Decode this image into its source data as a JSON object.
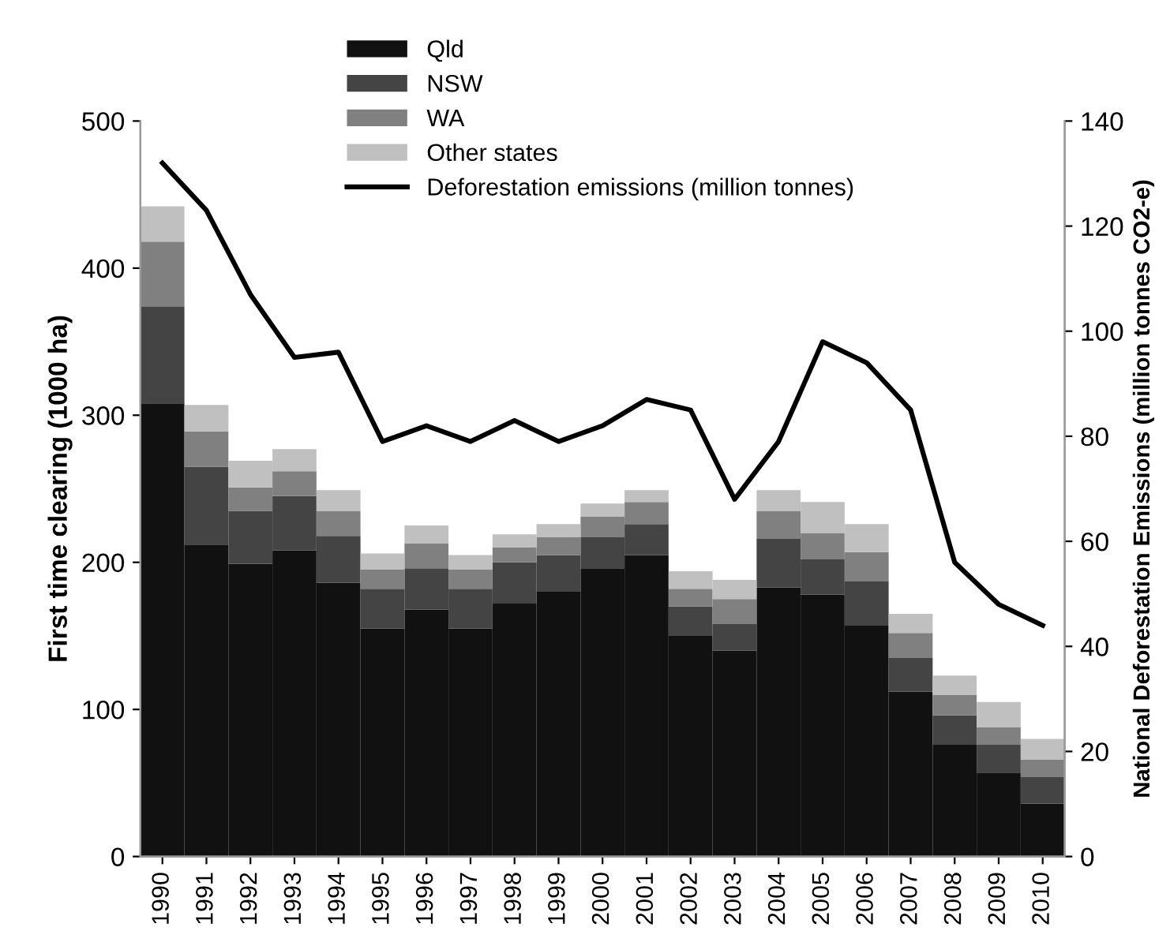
{
  "chart_data": {
    "type": "bar",
    "stacked": true,
    "ylabel": "First time clearing (1000 ha)",
    "y2label": "National Deforestation Emissions (million tonnes CO2-e)",
    "categories": [
      "1990",
      "1991",
      "1992",
      "1993",
      "1994",
      "1995",
      "1996",
      "1997",
      "1998",
      "1999",
      "2000",
      "2001",
      "2002",
      "2003",
      "2004",
      "2005",
      "2006",
      "2007",
      "2008",
      "2009",
      "2010"
    ],
    "series": [
      {
        "name": "Qld",
        "color": "#111111",
        "values": [
          308,
          212,
          199,
          208,
          186,
          155,
          168,
          155,
          172,
          180,
          196,
          205,
          150,
          140,
          183,
          178,
          157,
          112,
          76,
          57,
          36
        ]
      },
      {
        "name": "NSW",
        "color": "#444444",
        "values": [
          66,
          53,
          36,
          37,
          32,
          27,
          28,
          27,
          28,
          25,
          21,
          21,
          20,
          18,
          33,
          24,
          30,
          23,
          20,
          19,
          18
        ]
      },
      {
        "name": "WA",
        "color": "#808080",
        "values": [
          44,
          24,
          16,
          17,
          17,
          13,
          17,
          13,
          10,
          12,
          14,
          15,
          12,
          17,
          19,
          18,
          20,
          17,
          14,
          12,
          12
        ]
      },
      {
        "name": "Other states",
        "color": "#c0c0c0",
        "values": [
          24,
          18,
          18,
          15,
          14,
          11,
          12,
          10,
          9,
          9,
          9,
          8,
          12,
          13,
          14,
          21,
          19,
          13,
          13,
          17,
          14
        ]
      },
      {
        "name": "Deforestation emissions (million tonnes)",
        "type": "line",
        "axis": "y2",
        "color": "#000000",
        "values": [
          132,
          123,
          107,
          95,
          96,
          79,
          82,
          79,
          83,
          79,
          82,
          87,
          85,
          68,
          79,
          98,
          94,
          85,
          56,
          48,
          44
        ]
      }
    ],
    "ylim": [
      0,
      500
    ],
    "yticks": [
      0,
      100,
      200,
      300,
      400,
      500
    ],
    "y2lim": [
      0,
      140
    ],
    "y2ticks": [
      0,
      20,
      40,
      60,
      80,
      100,
      120,
      140
    ],
    "legend": "top",
    "grid": false
  }
}
